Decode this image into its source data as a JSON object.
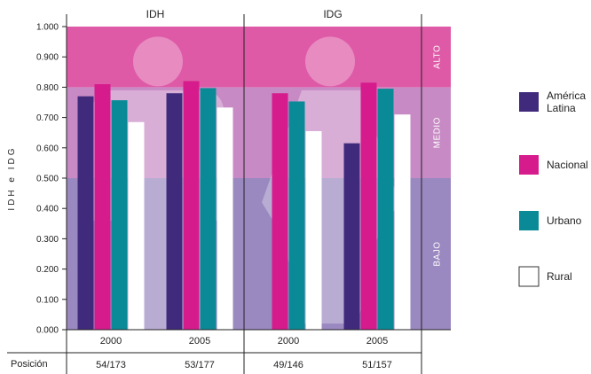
{
  "chart_data": {
    "type": "bar",
    "ylabel": "IDH e IDG",
    "ylim": [
      0,
      1
    ],
    "yticks": [
      "0.000",
      "0.100",
      "0.200",
      "0.300",
      "0.400",
      "0.500",
      "0.600",
      "0.700",
      "0.800",
      "0.900",
      "1.000"
    ],
    "bands": [
      {
        "label": "BAJO",
        "from": 0.0,
        "to": 0.5,
        "color": "#9a88c0"
      },
      {
        "label": "MEDIO",
        "from": 0.5,
        "to": 0.8,
        "color": "#c78ac4"
      },
      {
        "label": "ALTO",
        "from": 0.8,
        "to": 1.0,
        "color": "#de5aa7"
      }
    ],
    "panels": [
      {
        "title": "IDH",
        "groups": [
          {
            "year": "2000",
            "position": "54/173",
            "values": [
              0.77,
              0.81,
              0.757,
              0.685
            ]
          },
          {
            "year": "2005",
            "position": "53/177",
            "values": [
              0.78,
              0.82,
              0.797,
              0.733
            ]
          }
        ]
      },
      {
        "title": "IDG",
        "groups": [
          {
            "year": "2000",
            "position": "49/146",
            "values": [
              null,
              0.78,
              0.753,
              0.655
            ]
          },
          {
            "year": "2005",
            "position": "51/157",
            "values": [
              0.615,
              0.815,
              0.795,
              0.71
            ]
          }
        ]
      }
    ],
    "position_label": "Posición",
    "series": [
      {
        "name": "América Latina",
        "color": "#3f2a7c"
      },
      {
        "name": "Nacional",
        "color": "#d61b8c"
      },
      {
        "name": "Urbano",
        "color": "#0a8a96"
      },
      {
        "name": "Rural",
        "color": "#ffffff"
      }
    ]
  }
}
